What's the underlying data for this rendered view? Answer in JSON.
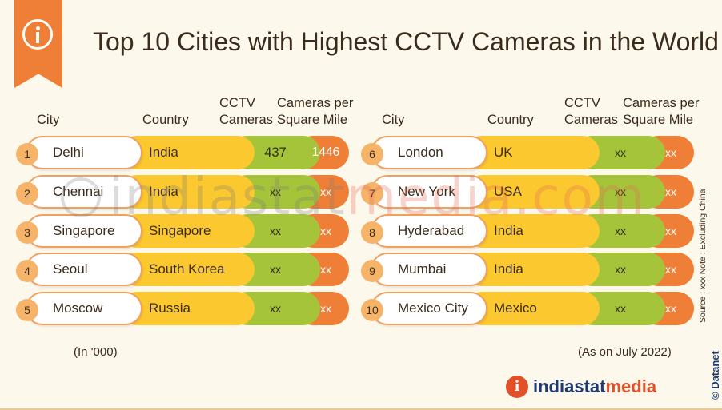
{
  "header": {
    "title": "Top 10 Cities with Highest CCTV Cameras in the World",
    "badge_icon": "info-icon"
  },
  "columns": {
    "city": "City",
    "country": "Country",
    "cctv_line1": "CCTV",
    "cctv_line2": "Cameras",
    "psm_line1": "Cameras per",
    "psm_line2": "Square Mile"
  },
  "rows_left": [
    {
      "rank": "1",
      "city": "Delhi",
      "country": "India",
      "cameras": "437",
      "per_sq_mile": "1446"
    },
    {
      "rank": "2",
      "city": "Chennai",
      "country": "India",
      "cameras": "xx",
      "per_sq_mile": "xx"
    },
    {
      "rank": "3",
      "city": "Singapore",
      "country": "Singapore",
      "cameras": "xx",
      "per_sq_mile": "xx"
    },
    {
      "rank": "4",
      "city": "Seoul",
      "country": "South Korea",
      "cameras": "xx",
      "per_sq_mile": "xx"
    },
    {
      "rank": "5",
      "city": "Moscow",
      "country": "Russia",
      "cameras": "xx",
      "per_sq_mile": "xx"
    }
  ],
  "rows_right": [
    {
      "rank": "6",
      "city": "London",
      "country": "UK",
      "cameras": "xx",
      "per_sq_mile": "xx"
    },
    {
      "rank": "7",
      "city": "New York",
      "country": "USA",
      "cameras": "xx",
      "per_sq_mile": "xx"
    },
    {
      "rank": "8",
      "city": "Hyderabad",
      "country": "India",
      "cameras": "xx",
      "per_sq_mile": "xx"
    },
    {
      "rank": "9",
      "city": "Mumbai",
      "country": "India",
      "cameras": "xx",
      "per_sq_mile": "xx"
    },
    {
      "rank": "10",
      "city": "Mexico City",
      "country": "Mexico",
      "cameras": "xx",
      "per_sq_mile": "xx"
    }
  ],
  "footer": {
    "unit_note": "(In '000)",
    "as_on": "(As on July 2022)",
    "source_note": "Source : xxx   Note : Excluding China",
    "side_brand": "© Datanet",
    "logo_part1": "indiastat",
    "logo_part2": "media",
    "logo_icon": "i"
  },
  "watermark": {
    "part1": "indiastat",
    "part2": "media.com"
  },
  "colors": {
    "background": "#fdf8ec",
    "accent_orange": "#ef7f36",
    "cameras_green": "#a5c43a",
    "country_yellow": "#fbc82f",
    "rank_badge": "#f6b36a",
    "brand_blue": "#1d3b72",
    "brand_red": "#e2502a"
  }
}
